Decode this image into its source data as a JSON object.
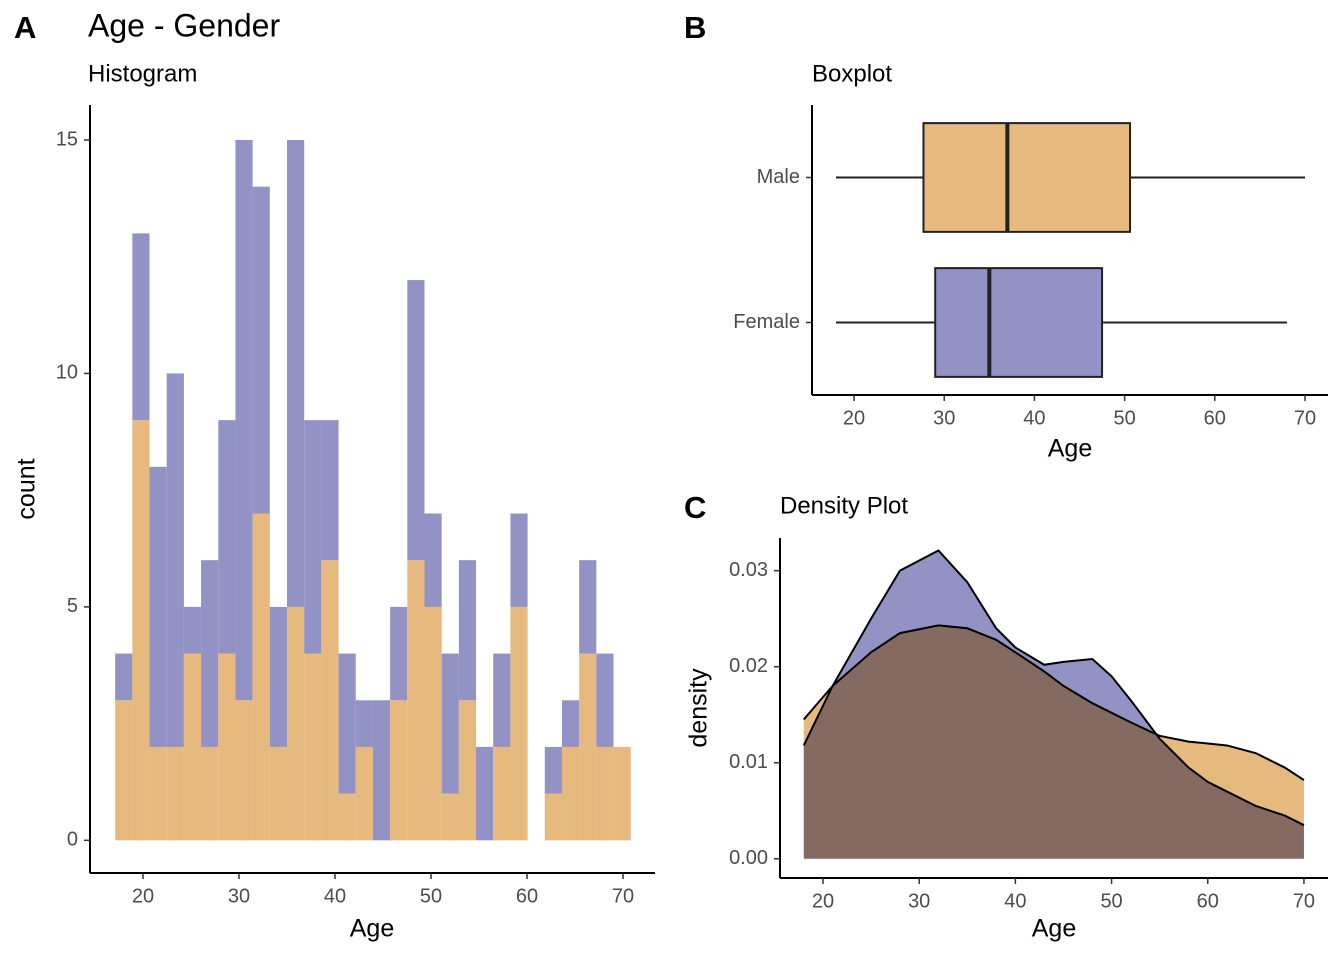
{
  "chart_data": [
    {
      "type": "histogram",
      "tag": "A",
      "title": "Age - Gender",
      "subtitle": "Histogram",
      "x_label": "Age",
      "y_label": "count",
      "bins": [
        17.1,
        18.89,
        20.68,
        22.47,
        24.26,
        26.05,
        27.84,
        29.63,
        31.42,
        33.21,
        35,
        36.79,
        38.58,
        40.37,
        42.16,
        43.95,
        45.74,
        47.53,
        49.32,
        51.11,
        52.9,
        54.69,
        56.48,
        58.27,
        60.06,
        61.85,
        63.64,
        65.43,
        67.22,
        69.01,
        70.8
      ],
      "series": [
        {
          "color": "#e6b97e",
          "values": [
            3,
            9,
            2,
            2,
            4,
            2,
            4,
            3,
            7,
            2,
            5,
            4,
            6,
            1,
            2,
            0,
            3,
            6,
            5,
            1,
            3,
            0,
            2,
            5,
            0,
            1,
            2,
            4,
            2,
            2
          ]
        },
        {
          "color": "#9392c4",
          "values": [
            1,
            4,
            6,
            8,
            1,
            4,
            5,
            12,
            7,
            3,
            10,
            5,
            3,
            3,
            1,
            3,
            2,
            6,
            2,
            3,
            3,
            2,
            2,
            2,
            0,
            1,
            1,
            2,
            2,
            0
          ]
        }
      ],
      "xlim": [
        14.48,
        73.33
      ],
      "ylim": [
        -0.7,
        15.75
      ],
      "xticks": [
        20,
        30,
        40,
        50,
        60,
        70
      ],
      "yticks": [
        0,
        5,
        10,
        15
      ]
    },
    {
      "type": "boxplot",
      "tag": "B",
      "title": "Boxplot",
      "x_label": "Age",
      "categories": [
        "Female",
        "Male"
      ],
      "colors": [
        "#9392c4",
        "#e6b97e"
      ],
      "min": [
        18,
        18
      ],
      "q1": [
        29,
        27.7
      ],
      "median": [
        35,
        37
      ],
      "q3": [
        47.5,
        50.6
      ],
      "max": [
        68,
        70
      ],
      "xlim": [
        15.34,
        72.55
      ],
      "xticks": [
        20,
        30,
        40,
        50,
        60,
        70
      ]
    },
    {
      "type": "density",
      "tag": "C",
      "title": "Density Plot",
      "x_label": "Age",
      "y_label": "density",
      "x": [
        18,
        21,
        25,
        28,
        32,
        35,
        38,
        40,
        43,
        45,
        48,
        50,
        52,
        55,
        58,
        60,
        62,
        65,
        68,
        70
      ],
      "series": [
        {
          "color": "#9392c4",
          "values": [
            0.0118,
            0.018,
            0.025,
            0.03,
            0.0321,
            0.0288,
            0.024,
            0.022,
            0.0202,
            0.0205,
            0.0208,
            0.019,
            0.0165,
            0.0125,
            0.0095,
            0.008,
            0.007,
            0.0055,
            0.0045,
            0.0035
          ]
        },
        {
          "color": "#e6b97e",
          "values": [
            0.0145,
            0.018,
            0.0215,
            0.0235,
            0.0243,
            0.024,
            0.0228,
            0.0215,
            0.0195,
            0.018,
            0.0162,
            0.0152,
            0.0142,
            0.0128,
            0.0122,
            0.012,
            0.0118,
            0.011,
            0.0095,
            0.0082
          ]
        }
      ],
      "xlim": [
        15.53,
        72.5
      ],
      "ylim": [
        -0.002,
        0.0334
      ],
      "xticks": [
        20,
        30,
        40,
        50,
        60,
        70
      ],
      "yticks": [
        {
          "value": 0,
          "label": "0.00"
        },
        0.01,
        0.02,
        0.03
      ]
    }
  ]
}
